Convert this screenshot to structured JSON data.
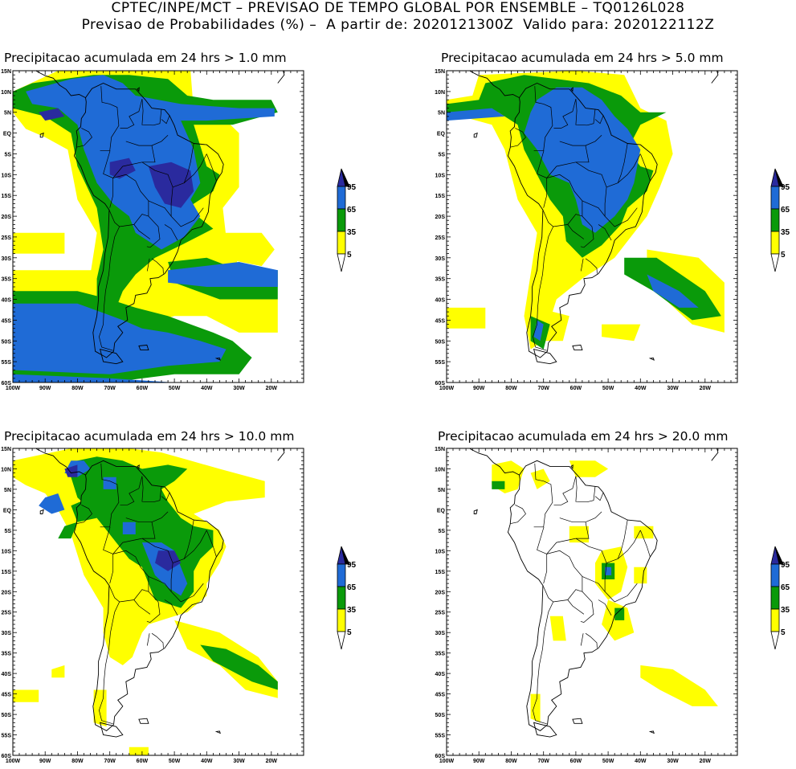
{
  "header": {
    "line1": "CPTEC/INPE/MCT – PREVISAO DE TEMPO GLOBAL POR ENSEMBLE – TQ0126L028",
    "line2": "Previsao de Probabilidades (%) –  A partir de: 2020121300Z  Valido para: 2020122112Z"
  },
  "axes": {
    "lat_labels": [
      "15N",
      "10N",
      "5N",
      "EQ",
      "5S",
      "10S",
      "15S",
      "20S",
      "25S",
      "30S",
      "35S",
      "40S",
      "45S",
      "50S",
      "55S",
      "60S"
    ],
    "lon_labels": [
      "100W",
      "90W",
      "80W",
      "70W",
      "60W",
      "50W",
      "40W",
      "30W",
      "20W"
    ]
  },
  "legend": {
    "levels": [
      "95",
      "65",
      "35",
      "5"
    ],
    "colors": {
      "low": "#ffff00",
      "mid": "#0a9a0a",
      "high": "#1f6bd6",
      "top": "#2a2a9e"
    }
  },
  "panels": [
    {
      "title": "Precipitacao acumulada em 24 hrs > 1.0 mm"
    },
    {
      "title": "Precipitacao acumulada em 24 hrs > 5.0 mm"
    },
    {
      "title": "Precipitacao acumulada em 24 hrs > 10.0 mm"
    },
    {
      "title": "Precipitacao acumulada em 24 hrs > 20.0 mm"
    }
  ]
}
